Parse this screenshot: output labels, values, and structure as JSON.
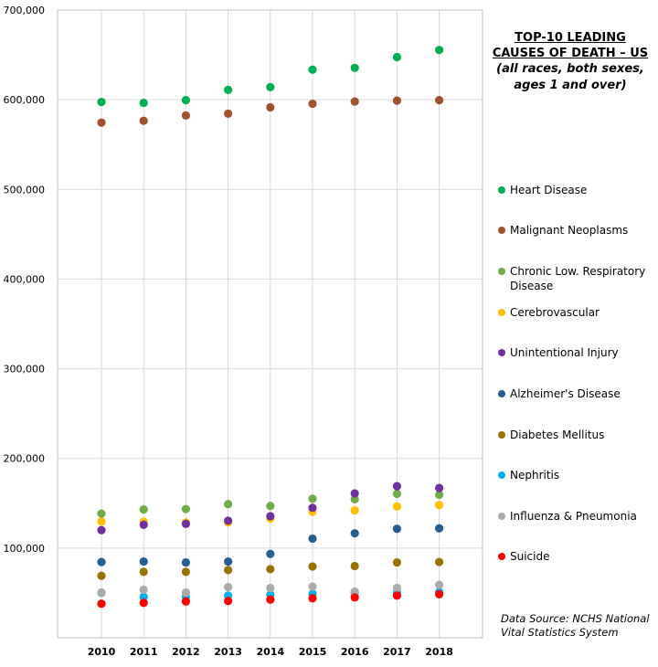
{
  "chart_data": {
    "type": "scatter",
    "title": "TOP-10 LEADING CAUSES OF DEATH – US",
    "title_lines": [
      "TOP-10 LEADING",
      "CAUSES OF DEATH – US"
    ],
    "subtitle": "(all races, both sexes, ages 1 and over)",
    "subtitle_lines": [
      "(all races, both sexes,",
      "ages 1 and over)"
    ],
    "source": "Data Source: NCHS National Vital Statistics System",
    "source_lines": [
      "Data Source: NCHS National",
      "Vital Statistics System"
    ],
    "xlabel": "",
    "ylabel": "",
    "x": [
      2010,
      2011,
      2012,
      2013,
      2014,
      2015,
      2016,
      2017,
      2018
    ],
    "x_tick_labels": [
      "2010",
      "2011",
      "2012",
      "2013",
      "2014",
      "2015",
      "2016",
      "2017",
      "2018"
    ],
    "ylim": [
      0,
      700000
    ],
    "y_ticks": [
      100000,
      200000,
      300000,
      400000,
      500000,
      600000,
      700000
    ],
    "y_tick_labels": [
      "100,000",
      "200,000",
      "300,000",
      "400,000",
      "500,000",
      "600,000",
      "700,000"
    ],
    "grid": true,
    "legend_position": "right",
    "series": [
      {
        "name": "Heart Disease",
        "color": "#00b050",
        "values": [
          597500,
          596500,
          599500,
          611000,
          614000,
          633500,
          635500,
          647500,
          655500
        ]
      },
      {
        "name": "Malignant Neoplasms",
        "color": "#a0522d",
        "values": [
          574500,
          576500,
          582500,
          584500,
          591500,
          595500,
          598000,
          599000,
          599500
        ]
      },
      {
        "name": "Chronic Low. Respiratory Disease",
        "color": "#70ad47",
        "values": [
          138500,
          143000,
          143500,
          149000,
          147000,
          155000,
          154500,
          160500,
          159500
        ]
      },
      {
        "name": "Cerebrovascular",
        "color": "#ffc000",
        "values": [
          129500,
          129500,
          128500,
          128500,
          133000,
          140500,
          142000,
          146500,
          148000
        ]
      },
      {
        "name": "Unintentional Injury",
        "color": "#7030a0",
        "values": [
          120000,
          126000,
          127000,
          130500,
          135500,
          145000,
          161000,
          169000,
          167000
        ]
      },
      {
        "name": "Alzheimer's Disease",
        "color": "#255e91",
        "values": [
          84500,
          85000,
          84000,
          85000,
          93500,
          110500,
          116500,
          121500,
          122000
        ]
      },
      {
        "name": "Diabetes Mellitus",
        "color": "#997300",
        "values": [
          69000,
          73500,
          73500,
          75500,
          76500,
          79500,
          80000,
          84000,
          84500
        ]
      },
      {
        "name": "Nephritis",
        "color": "#00b0f0",
        "values": [
          50000,
          45500,
          45500,
          47000,
          48000,
          49000,
          50000,
          50500,
          51000
        ]
      },
      {
        "name": "Influenza & Pneumonia",
        "color": "#aaaaaa",
        "values": [
          50500,
          53500,
          50500,
          56500,
          55500,
          57000,
          51500,
          55500,
          59000
        ]
      },
      {
        "name": "Suicide",
        "color": "#ff0000",
        "values": [
          38000,
          39000,
          40500,
          41000,
          42500,
          44000,
          45000,
          47000,
          48500
        ]
      }
    ]
  }
}
